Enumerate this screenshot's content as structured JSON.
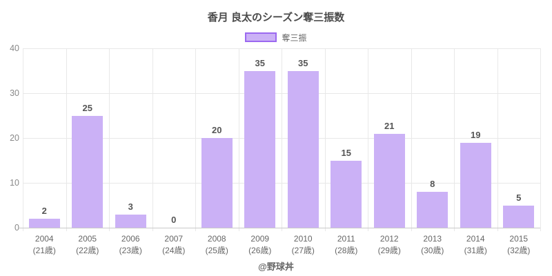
{
  "title": "香月 良太のシーズン奪三振数",
  "legend": {
    "label": "奪三振"
  },
  "footer": "@野球丼",
  "colors": {
    "bar_fill": "#cbb1f6",
    "legend_border": "#9b69f0",
    "grid": "#e8e8e8",
    "axis_line": "#c9c9c9",
    "title_text": "#4a4a4a",
    "y_tick_text": "#888888",
    "x_tick_text": "#666666",
    "value_text": "#555555"
  },
  "chart_data": {
    "type": "bar",
    "title": "香月 良太のシーズン奪三振数",
    "series_name": "奪三振",
    "categories": [
      {
        "line1": "2004",
        "line2": "(21歳)"
      },
      {
        "line1": "2005",
        "line2": "(22歳)"
      },
      {
        "line1": "2006",
        "line2": "(23歳)"
      },
      {
        "line1": "2007",
        "line2": "(24歳)"
      },
      {
        "line1": "2008",
        "line2": "(25歳)"
      },
      {
        "line1": "2009",
        "line2": "(26歳)"
      },
      {
        "line1": "2010",
        "line2": "(27歳)"
      },
      {
        "line1": "2011",
        "line2": "(28歳)"
      },
      {
        "line1": "2012",
        "line2": "(29歳)"
      },
      {
        "line1": "2013",
        "line2": "(30歳)"
      },
      {
        "line1": "2014",
        "line2": "(31歳)"
      },
      {
        "line1": "2015",
        "line2": "(32歳)"
      }
    ],
    "values": [
      2,
      25,
      3,
      0,
      20,
      35,
      35,
      15,
      21,
      8,
      19,
      5
    ],
    "yticks": [
      0,
      10,
      20,
      30,
      40
    ],
    "ylim": [
      0,
      40
    ],
    "grid": true,
    "legend_position": "top",
    "xlabel": "",
    "ylabel": ""
  }
}
